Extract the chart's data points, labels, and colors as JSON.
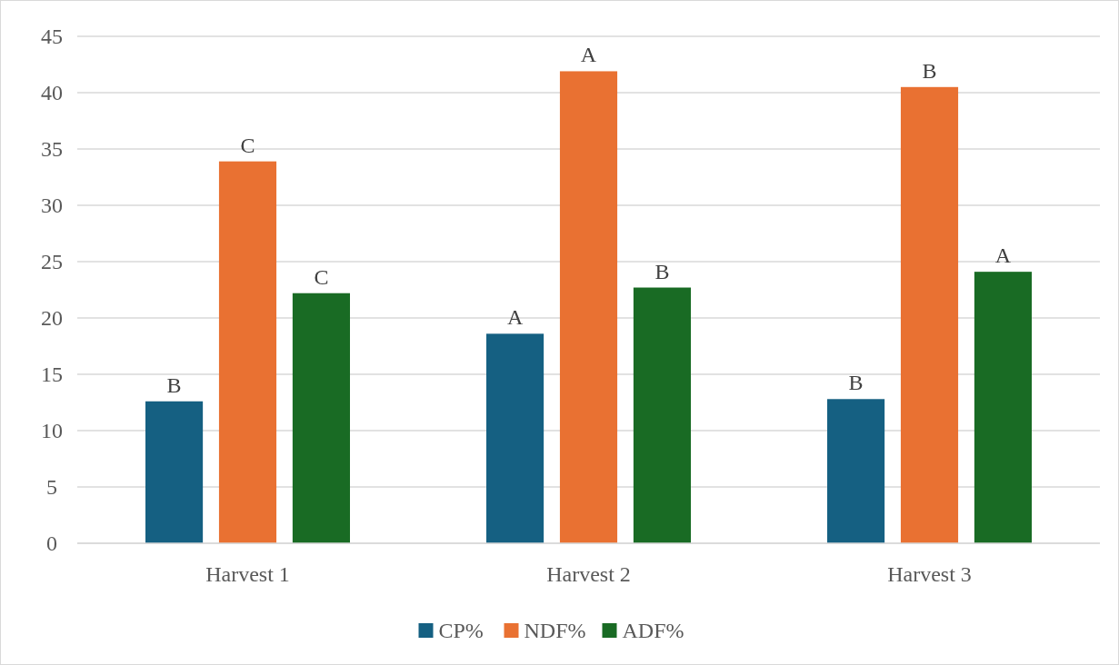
{
  "chart_data": {
    "type": "bar",
    "categories": [
      "Harvest 1",
      "Harvest 2",
      "Harvest 3"
    ],
    "series": [
      {
        "name": "CP%",
        "color": "#156082",
        "values": [
          12.6,
          18.6,
          12.8
        ],
        "value_labels": [
          "B",
          "A",
          "B"
        ]
      },
      {
        "name": "NDF%",
        "color": "#e97132",
        "values": [
          33.9,
          41.9,
          40.5
        ],
        "value_labels": [
          "C",
          "A",
          "B"
        ]
      },
      {
        "name": "ADF%",
        "color": "#196b24",
        "values": [
          22.2,
          22.7,
          24.1
        ],
        "value_labels": [
          "C",
          "B",
          "A"
        ]
      }
    ],
    "ylim": [
      0,
      45
    ],
    "yticks": [
      0,
      5,
      10,
      15,
      20,
      25,
      30,
      35,
      40,
      45
    ],
    "grid": "y",
    "legend": "bottom"
  }
}
